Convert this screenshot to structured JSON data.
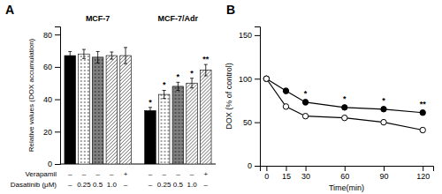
{
  "chart_data": [
    {
      "type": "bar",
      "title": "A",
      "ylabel": "Relative values (DOX accumulation)",
      "ylim": [
        0,
        85
      ],
      "yticks": [
        0,
        20,
        40,
        60,
        80
      ],
      "tick_labels": "y",
      "colors": [
        "black",
        "white",
        "#808080",
        "white",
        "white"
      ],
      "series": [
        {
          "name": "MCF-7",
          "values": [
            67,
            68,
            66,
            67,
            67
          ],
          "errors": [
            2.5,
            2.8,
            3.5,
            2.2,
            5.0
          ]
        },
        {
          "name": "MCF-7/Adr",
          "values": [
            33,
            43,
            48,
            50,
            58
          ],
          "errors": [
            2.0,
            2.5,
            2.5,
            3.0,
            3.5
          ],
          "significance": [
            "*",
            "*",
            "*",
            "*",
            "**"
          ]
        }
      ],
      "row_labels": [
        {
          "name": "Verapamil",
          "labels": [
            "–",
            "–",
            "–",
            "–",
            "+",
            "–",
            "–",
            "–",
            "–",
            "+"
          ]
        },
        {
          "name": "Dasatinib (μM)",
          "labels": [
            "–",
            "0.25",
            "0.5",
            "1.0",
            "–",
            "–",
            "0.25",
            "0.5",
            "1.0",
            "–"
          ]
        }
      ]
    },
    {
      "type": "line",
      "title": "B",
      "xlabel": "Time(min)",
      "ylabel": "DOX (% of control)",
      "x": [
        0,
        15,
        30,
        60,
        90,
        120
      ],
      "xlim": [
        -5,
        128
      ],
      "xticks": [
        0,
        15,
        30,
        60,
        90,
        120
      ],
      "ylim": [
        0,
        160
      ],
      "yticks": [
        0,
        50,
        100,
        150
      ],
      "series": [
        {
          "color": "black",
          "marker": "circle",
          "values": [
            100,
            86,
            73,
            67,
            65,
            61
          ],
          "errors": [
            1.5,
            3,
            3,
            2.5,
            2.5,
            2.5
          ],
          "significance": [
            null,
            null,
            "*",
            "*",
            "*",
            "**"
          ]
        },
        {
          "color": "black",
          "marker": "circle-open",
          "values": [
            100,
            68,
            57,
            55,
            50,
            41
          ],
          "errors": [
            1.5,
            2.5,
            2.5,
            2.5,
            2.5,
            2.5
          ]
        }
      ]
    }
  ]
}
